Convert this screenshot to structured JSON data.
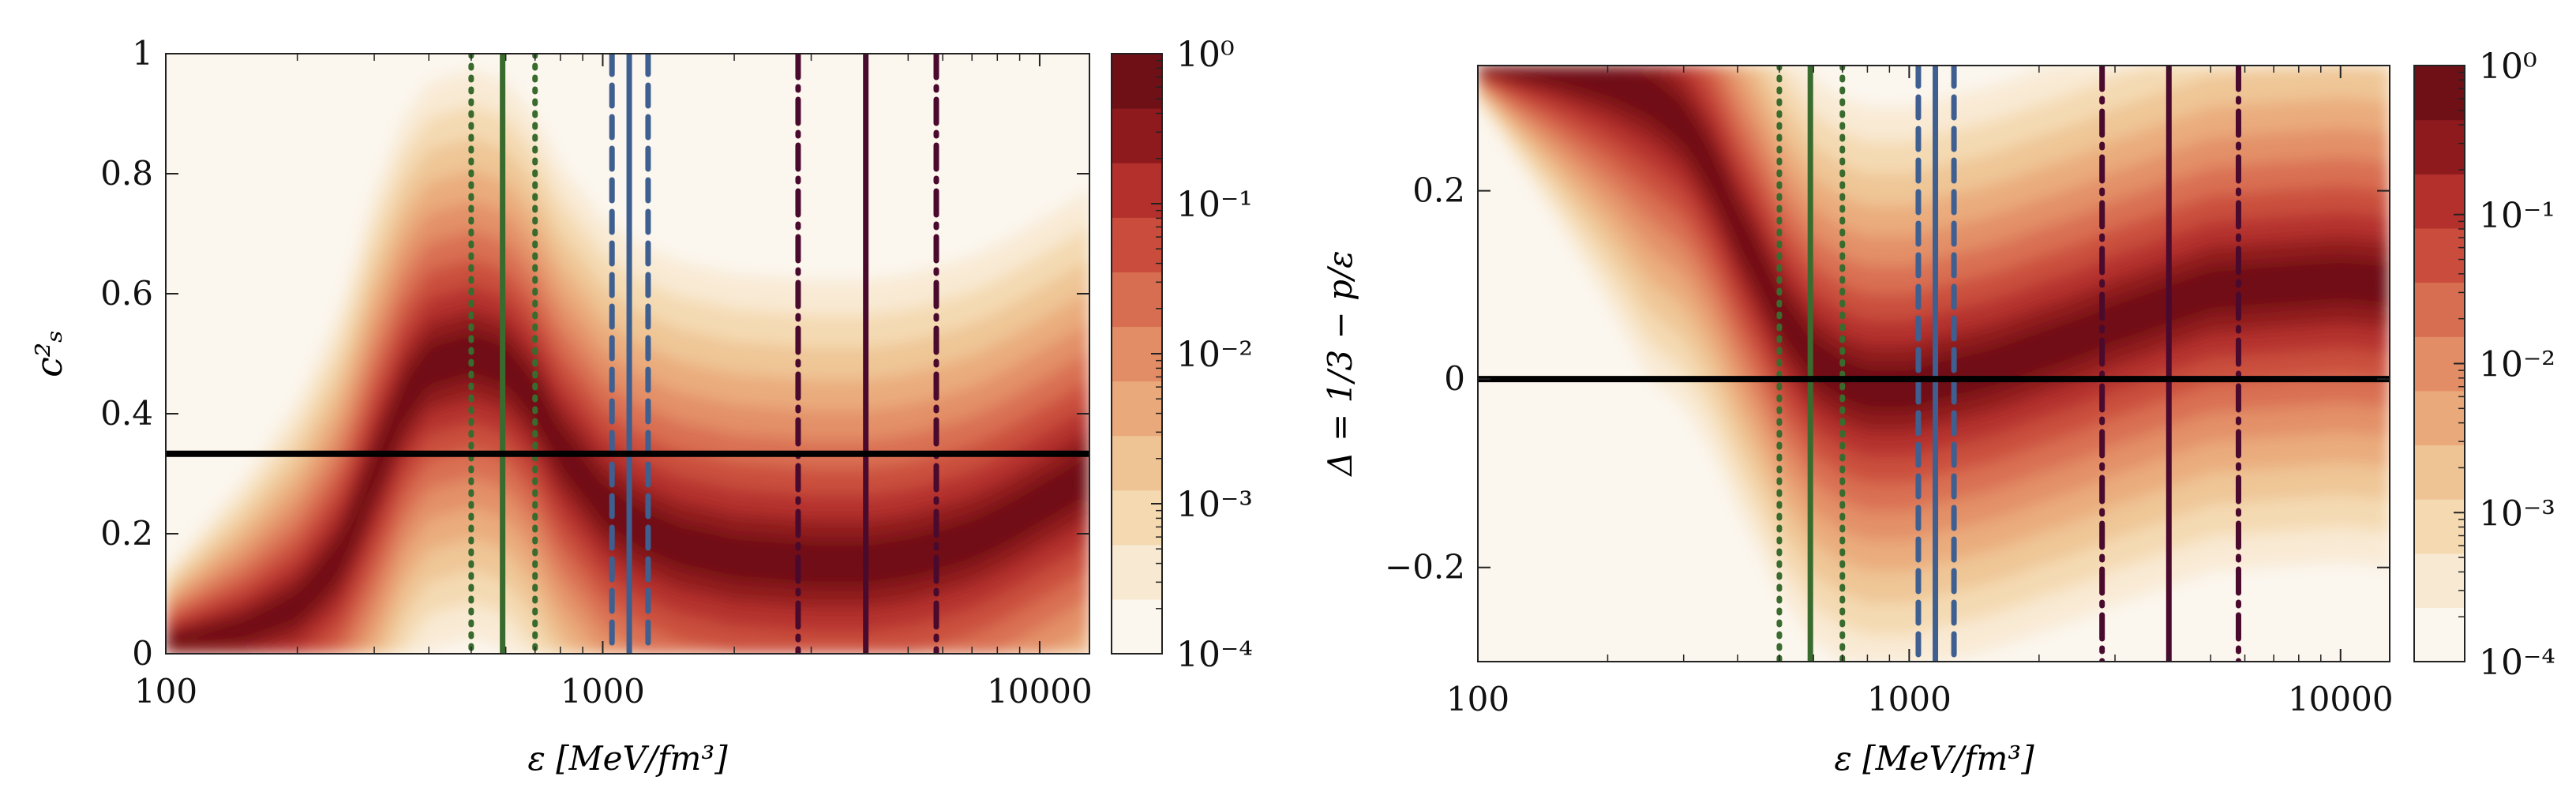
{
  "chart_data": [
    {
      "type": "heatmap",
      "panel": "left",
      "xlabel": "ε [MeV/fm³]",
      "ylabel": "c²ₛ",
      "x_scale": "log",
      "xlim": [
        100,
        13000
      ],
      "ylim": [
        0,
        1
      ],
      "x_ticks": [
        100,
        1000,
        10000
      ],
      "x_tick_labels": [
        "100",
        "1000",
        "10000"
      ],
      "y_ticks": [
        0,
        0.2,
        0.4,
        0.6,
        0.8,
        1
      ],
      "y_tick_labels": [
        "0",
        "0.2",
        "0.4",
        "0.6",
        "0.8",
        "1"
      ],
      "reference_line": {
        "y": 0.3333,
        "color": "#000000"
      },
      "ridge": {
        "x": [
          100,
          150,
          200,
          250,
          300,
          350,
          400,
          500,
          600,
          700,
          800,
          1000,
          1200,
          1500,
          2000,
          3000,
          4000,
          5000,
          7000,
          10000,
          13000
        ],
        "y": [
          0.02,
          0.04,
          0.08,
          0.16,
          0.3,
          0.42,
          0.48,
          0.5,
          0.48,
          0.42,
          0.34,
          0.25,
          0.21,
          0.18,
          0.16,
          0.15,
          0.15,
          0.16,
          0.19,
          0.25,
          0.3
        ]
      },
      "vertical_lines": [
        {
          "x": 500,
          "color": "#3a6b2e",
          "style": "dotted"
        },
        {
          "x": 590,
          "color": "#3a6b2e",
          "style": "solid"
        },
        {
          "x": 700,
          "color": "#3a6b2e",
          "style": "dotted"
        },
        {
          "x": 1050,
          "color": "#3e5f8f",
          "style": "dashed"
        },
        {
          "x": 1150,
          "color": "#3e5f8f",
          "style": "solid"
        },
        {
          "x": 1270,
          "color": "#3e5f8f",
          "style": "dashed"
        },
        {
          "x": 2800,
          "color": "#4a0a2e",
          "style": "dashdot"
        },
        {
          "x": 4000,
          "color": "#4a0a2e",
          "style": "solid"
        },
        {
          "x": 5800,
          "color": "#4a0a2e",
          "style": "dashdot"
        }
      ],
      "colorbar": {
        "scale": "log",
        "range": [
          0.0001,
          1
        ],
        "tick_labels": [
          "10⁰",
          "10⁻¹",
          "10⁻²",
          "10⁻³",
          "10⁻⁴"
        ],
        "colors": [
          "#fbf6ee",
          "#f8e9d2",
          "#f4d9b1",
          "#efc494",
          "#e9a97b",
          "#e28d65",
          "#d86e51",
          "#c94c3d",
          "#b3302c",
          "#8e1a1e",
          "#6e1016"
        ]
      }
    },
    {
      "type": "heatmap",
      "panel": "right",
      "xlabel": "ε [MeV/fm³]",
      "ylabel": "Δ = 1/3 − p/ε",
      "x_scale": "log",
      "xlim": [
        100,
        13000
      ],
      "ylim": [
        -0.3,
        0.333
      ],
      "x_ticks": [
        100,
        1000,
        10000
      ],
      "x_tick_labels": [
        "100",
        "1000",
        "10000"
      ],
      "y_ticks": [
        -0.2,
        0,
        0.2
      ],
      "y_tick_labels": [
        "−0.2",
        "0",
        "0.2"
      ],
      "reference_line": {
        "y": 0,
        "color": "#000000"
      },
      "ridge": {
        "x": [
          100,
          150,
          200,
          250,
          300,
          350,
          400,
          500,
          600,
          700,
          800,
          1000,
          1200,
          1500,
          2000,
          3000,
          4000,
          5000,
          7000,
          10000,
          13000
        ],
        "y": [
          0.33,
          0.325,
          0.315,
          0.3,
          0.27,
          0.22,
          0.16,
          0.07,
          0.02,
          0.0,
          -0.01,
          -0.01,
          0.0,
          0.01,
          0.03,
          0.06,
          0.08,
          0.095,
          0.1,
          0.105,
          0.1
        ]
      },
      "vertical_lines": [
        {
          "x": 500,
          "color": "#3a6b2e",
          "style": "dotted"
        },
        {
          "x": 590,
          "color": "#3a6b2e",
          "style": "solid"
        },
        {
          "x": 700,
          "color": "#3a6b2e",
          "style": "dotted"
        },
        {
          "x": 1050,
          "color": "#3e5f8f",
          "style": "dashed"
        },
        {
          "x": 1150,
          "color": "#3e5f8f",
          "style": "solid"
        },
        {
          "x": 1270,
          "color": "#3e5f8f",
          "style": "dashed"
        },
        {
          "x": 2800,
          "color": "#4a0a2e",
          "style": "dashdot"
        },
        {
          "x": 4000,
          "color": "#4a0a2e",
          "style": "solid"
        },
        {
          "x": 5800,
          "color": "#4a0a2e",
          "style": "dashdot"
        }
      ],
      "colorbar": {
        "scale": "log",
        "range": [
          0.0001,
          1
        ],
        "tick_labels": [
          "10⁰",
          "10⁻¹",
          "10⁻²",
          "10⁻³",
          "10⁻⁴"
        ],
        "colors": [
          "#fbf6ee",
          "#f8e9d2",
          "#f4d9b1",
          "#efc494",
          "#e9a97b",
          "#e28d65",
          "#d86e51",
          "#c94c3d",
          "#b3302c",
          "#8e1a1e",
          "#6e1016"
        ]
      }
    }
  ]
}
